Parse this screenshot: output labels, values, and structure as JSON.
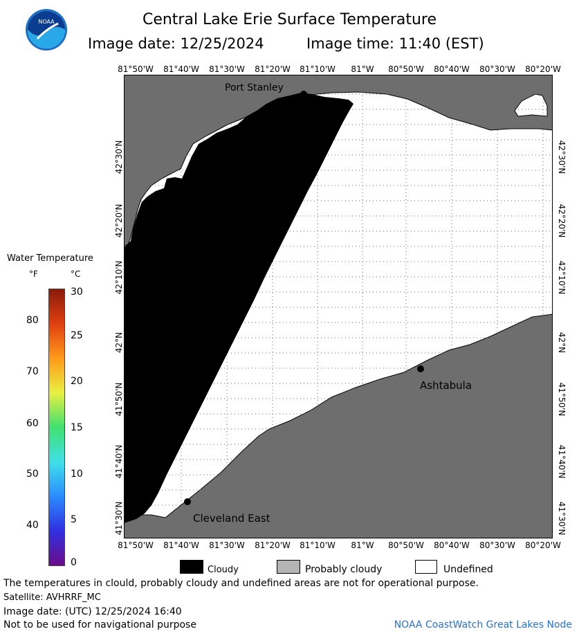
{
  "header": {
    "title": "Central Lake Erie Surface Temperature",
    "image_date": "Image date: 12/25/2024",
    "image_time": "Image time: 11:40 (EST)"
  },
  "axes": {
    "longitudes": [
      "81°50'W",
      "81°40'W",
      "81°30'W",
      "81°20'W",
      "81°10'W",
      "81°W",
      "80°50'W",
      "80°40'W",
      "80°30'W",
      "80°20'W"
    ],
    "latitudes": [
      "42°30'N",
      "42°20'N",
      "42°10'N",
      "42°N",
      "41°50'N",
      "41°40'N",
      "41°30'N"
    ]
  },
  "places": {
    "port_stanley": "Port Stanley",
    "ashtabula": "Ashtabula",
    "cleveland_east": "Cleveland East"
  },
  "colorbar": {
    "title": "Water Temperature",
    "unit_f": "°F",
    "unit_c": "°C",
    "f_ticks": [
      "80",
      "70",
      "60",
      "50",
      "40"
    ],
    "c_ticks": [
      "30",
      "25",
      "20",
      "15",
      "10",
      "5",
      "0"
    ],
    "colors": [
      "#6a0d8a",
      "#3030e0",
      "#2a8cff",
      "#40e0e8",
      "#40e070",
      "#e8f040",
      "#ff9a1a",
      "#e04010",
      "#8a1a0a"
    ]
  },
  "legend": {
    "cloudy": "Cloudy",
    "probably_cloudy": "Probably cloudy",
    "undefined": "Undefined"
  },
  "footer": {
    "note": "The temperatures in clould, probably cloudy and undefined areas are not for operational purpose.",
    "satellite": "Satellite: AVHRRF_MC",
    "utc_date": "Image date: (UTC) 12/25/2024  16:40",
    "navigation": "Not to be used for navigational purpose",
    "credit": "NOAA CoastWatch Great Lakes Node"
  },
  "colors": {
    "land": "#6e6e6e",
    "cloud": "#000000",
    "undefined": "#ffffff",
    "probably_cloudy": "#b4b4b4",
    "grid": "#555555"
  },
  "logo_text": "NOAA"
}
